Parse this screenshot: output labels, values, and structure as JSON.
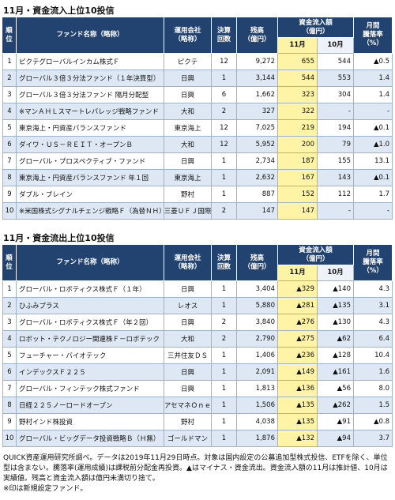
{
  "tables": [
    {
      "title": "11月・資金流入上位10投信",
      "headers": {
        "rank": [
          "順",
          "位"
        ],
        "name": [
          "ファンド名称（略称）"
        ],
        "company": [
          "運用会社",
          "（略称）"
        ],
        "settle": [
          "決算",
          "回数"
        ],
        "balance": [
          "残高",
          "（億円）"
        ],
        "flow": [
          "資金流入額",
          "（億円）"
        ],
        "nov": [
          "11月"
        ],
        "oct": [
          "10月"
        ],
        "change": [
          "月間",
          "騰落率",
          "（%）"
        ]
      },
      "rows": [
        [
          "1",
          "ピクテグローバルインカム株式Ｆ",
          "ピクテ",
          "12",
          "9,272",
          "655",
          "544",
          "▲0.5"
        ],
        [
          "2",
          "グローバル３倍３分法ファンド（１年決算型）",
          "日興",
          "1",
          "3,144",
          "544",
          "553",
          "1.4"
        ],
        [
          "3",
          "グローバル３倍３分法ファンド 隔月分配型",
          "日興",
          "6",
          "1,662",
          "323",
          "304",
          "1.4"
        ],
        [
          "4",
          "※マンＡＨＬスマートレバレッジ戦略ファンド",
          "大和",
          "2",
          "327",
          "322",
          "-",
          "-"
        ],
        [
          "5",
          "東京海上・円資産バランスファンド",
          "東京海上",
          "12",
          "7,025",
          "219",
          "194",
          "▲0.1"
        ],
        [
          "6",
          "ダイワ・ＵＳ－ＲＥＩＴ・オープンＢ",
          "大和",
          "12",
          "5,952",
          "200",
          "79",
          "▲1.0"
        ],
        [
          "7",
          "グローバル・プロスペクティブ・ファンド",
          "日興",
          "1",
          "2,734",
          "187",
          "155",
          "13.1"
        ],
        [
          "8",
          "東京海上・円資産バランスファンド 年１回",
          "東京海上",
          "1",
          "2,632",
          "167",
          "143",
          "▲0.1"
        ],
        [
          "9",
          "ダブル・ブレイン",
          "野村",
          "1",
          "887",
          "152",
          "112",
          "1.7"
        ],
        [
          "10",
          "※米国株式シグナルチェンジ戦略Ｆ（為替ＮＨ）",
          "三菱ＵＦＪ国際",
          "2",
          "147",
          "147",
          "-",
          "-"
        ]
      ]
    },
    {
      "title": "11月・資金流出上位10投信",
      "headers": {
        "rank": [
          "順",
          "位"
        ],
        "name": [
          "ファンド名称（略称）"
        ],
        "company": [
          "運用会社",
          "（略称）"
        ],
        "settle": [
          "決算",
          "回数"
        ],
        "balance": [
          "残高",
          "（億円）"
        ],
        "flow": [
          "資金流入額",
          "（億円）"
        ],
        "nov": [
          "11月"
        ],
        "oct": [
          "10月"
        ],
        "change": [
          "月間",
          "騰落率",
          "（%）"
        ]
      },
      "rows": [
        [
          "1",
          "グローバル・ロボティクス株式Ｆ（１年）",
          "日興",
          "1",
          "3,404",
          "▲329",
          "▲140",
          "4.3"
        ],
        [
          "2",
          "ひふみプラス",
          "レオス",
          "1",
          "5,880",
          "▲281",
          "▲135",
          "3.1"
        ],
        [
          "3",
          "グローバル・ロボティクス株式Ｆ（年２回）",
          "日興",
          "2",
          "3,840",
          "▲276",
          "▲130",
          "4.3"
        ],
        [
          "4",
          "ロボット・テクノロジー関連株Ｆ－ロボテック",
          "大和",
          "2",
          "2,790",
          "▲275",
          "▲62",
          "6.4"
        ],
        [
          "5",
          "フューチャー・バイオテック",
          "三井住友ＤＳ",
          "1",
          "1,406",
          "▲236",
          "▲128",
          "10.4"
        ],
        [
          "6",
          "インデックスＦ２２５",
          "日興",
          "1",
          "2,091",
          "▲149",
          "▲161",
          "1.6"
        ],
        [
          "7",
          "グローバル・フィンテック株式ファンド",
          "日興",
          "1",
          "1,813",
          "▲136",
          "▲56",
          "8.0"
        ],
        [
          "8",
          "日経２２５ノーロードオープン",
          "アセマネＯｎｅ",
          "1",
          "1,506",
          "▲135",
          "▲262",
          "1.5"
        ],
        [
          "9",
          "野村インド株投資",
          "野村",
          "1",
          "4,038",
          "▲135",
          "▲91",
          "▲0.8"
        ],
        [
          "10",
          "グローバル・ビッグデータ投資戦略Ｂ（Ｈ無）",
          "ゴールドマン",
          "1",
          "1,876",
          "▲132",
          "▲94",
          "3.7"
        ]
      ]
    }
  ],
  "notes": [
    "QUICK資産運用研究所調べ。データは2019年11月29日時点。対象は国内設定の公募追加型株式投信、ETFを除く、単位型は含まない。騰落率(運用成績)は課税前分配金再投資。▲はマイナス・資金流出。資金流入額の11月は推計値、10月は実績値。残高と資金流入額は億円未満切り捨て。",
    "※印は新規設定ファンド。"
  ]
}
